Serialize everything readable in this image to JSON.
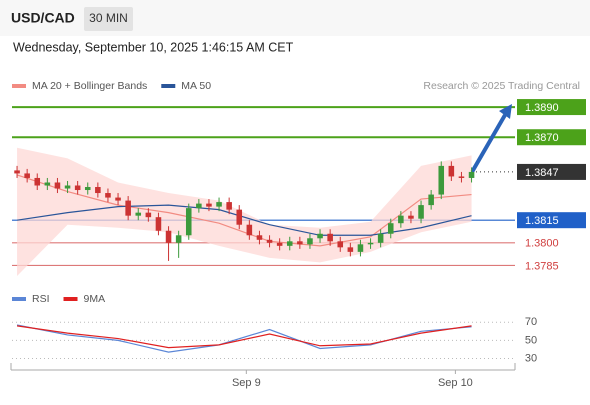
{
  "header": {
    "symbol": "USD/CAD",
    "timeframe": "30 MIN",
    "datetime": "Wednesday, September 10, 2025 1:46:15 AM CET"
  },
  "chart_data": [
    {
      "type": "candlestick",
      "source": "Research © 2025 Trading Central",
      "xlim": [
        0,
        50
      ],
      "ylim": [
        1.3778,
        1.3898
      ],
      "up_color": "#3c9a3c",
      "down_color": "#cc3333",
      "x": [
        0.5,
        1.5,
        2.5,
        3.5,
        4.5,
        5.5,
        6.5,
        7.5,
        8.5,
        9.5,
        10.5,
        11.5,
        12.5,
        13.5,
        14.5,
        15.5,
        16.5,
        17.5,
        18.5,
        19.5,
        20.5,
        21.5,
        22.5,
        23.5,
        24.5,
        25.5,
        26.5,
        27.5,
        28.5,
        29.5,
        30.5,
        31.5,
        32.5,
        33.5,
        34.5,
        35.5,
        36.5,
        37.5,
        38.5,
        39.5,
        40.5,
        41.5,
        42.5,
        43.5,
        44.5,
        45.5
      ],
      "open": [
        1.3848,
        1.3846,
        1.3843,
        1.3838,
        1.384,
        1.3836,
        1.3838,
        1.3835,
        1.3837,
        1.3833,
        1.383,
        1.3828,
        1.3818,
        1.382,
        1.3817,
        1.3808,
        1.38,
        1.3805,
        1.3823,
        1.3826,
        1.3824,
        1.3827,
        1.3822,
        1.3812,
        1.3805,
        1.3802,
        1.38,
        1.3798,
        1.3801,
        1.3799,
        1.3803,
        1.3806,
        1.3801,
        1.3797,
        1.3794,
        1.3799,
        1.38,
        1.3806,
        1.3813,
        1.3818,
        1.3816,
        1.3825,
        1.3832,
        1.3851,
        1.3844,
        1.3843
      ],
      "high": [
        1.3851,
        1.3849,
        1.3846,
        1.3843,
        1.3843,
        1.3841,
        1.3841,
        1.384,
        1.384,
        1.3836,
        1.3833,
        1.3831,
        1.3823,
        1.3823,
        1.382,
        1.3811,
        1.3808,
        1.3826,
        1.3829,
        1.3829,
        1.383,
        1.383,
        1.3825,
        1.3815,
        1.3808,
        1.3805,
        1.3803,
        1.3804,
        1.3804,
        1.3806,
        1.3809,
        1.3809,
        1.3804,
        1.38,
        1.3802,
        1.3803,
        1.3809,
        1.3816,
        1.3821,
        1.3821,
        1.3828,
        1.3835,
        1.3854,
        1.3854,
        1.3847,
        1.385
      ],
      "low": [
        1.3843,
        1.384,
        1.3835,
        1.3835,
        1.3833,
        1.3833,
        1.3832,
        1.3832,
        1.383,
        1.3827,
        1.3825,
        1.3815,
        1.3815,
        1.3814,
        1.3805,
        1.3788,
        1.379,
        1.3802,
        1.382,
        1.3821,
        1.3821,
        1.3819,
        1.3809,
        1.3802,
        1.3799,
        1.3797,
        1.3795,
        1.3795,
        1.3796,
        1.3796,
        1.38,
        1.3798,
        1.3794,
        1.3791,
        1.3791,
        1.3796,
        1.3797,
        1.3803,
        1.381,
        1.3813,
        1.3813,
        1.3822,
        1.3829,
        1.3841,
        1.384,
        1.384
      ],
      "close": [
        1.3846,
        1.3843,
        1.3838,
        1.384,
        1.3836,
        1.3838,
        1.3835,
        1.3837,
        1.3833,
        1.383,
        1.3828,
        1.3818,
        1.382,
        1.3817,
        1.3808,
        1.38,
        1.3805,
        1.3823,
        1.3826,
        1.3824,
        1.3827,
        1.3822,
        1.3812,
        1.3805,
        1.3802,
        1.38,
        1.3798,
        1.3801,
        1.3799,
        1.3803,
        1.3806,
        1.3801,
        1.3797,
        1.3794,
        1.3799,
        1.38,
        1.3806,
        1.3813,
        1.3818,
        1.3816,
        1.3825,
        1.3832,
        1.3851,
        1.3844,
        1.3843,
        1.3847
      ],
      "series": [
        {
          "name": "MA 20 + Bollinger Bands",
          "color": "#f28b82",
          "band_color": "#fdd8d6",
          "x": [
            0.5,
            5.5,
            10.5,
            15.5,
            20.5,
            25.5,
            30.5,
            35.5,
            40.5,
            45.5
          ],
          "values": [
            1.3845,
            1.3834,
            1.3825,
            1.382,
            1.3813,
            1.3801,
            1.3798,
            1.3804,
            1.3829,
            1.3832
          ],
          "upper": [
            1.3863,
            1.3856,
            1.384,
            1.3833,
            1.3828,
            1.3812,
            1.381,
            1.3814,
            1.3851,
            1.3858
          ],
          "lower": [
            1.3778,
            1.3812,
            1.381,
            1.3807,
            1.3798,
            1.379,
            1.3787,
            1.3794,
            1.3807,
            1.3814
          ]
        },
        {
          "name": "MA 50",
          "color": "#2a5599",
          "x": [
            0.5,
            5.5,
            10.5,
            15.5,
            20.5,
            25.5,
            30.5,
            35.5,
            40.5,
            45.5
          ],
          "values": [
            1.3815,
            1.382,
            1.3824,
            1.3825,
            1.3822,
            1.3812,
            1.3805,
            1.3805,
            1.381,
            1.3818
          ]
        }
      ],
      "levels": [
        {
          "value": 1.389,
          "label": "1.3890",
          "color": "#4ca21a",
          "style": "box",
          "line": "solid"
        },
        {
          "value": 1.387,
          "label": "1.3870",
          "color": "#4ca21a",
          "style": "box",
          "line": "solid"
        },
        {
          "value": 1.3847,
          "label": "1.3847",
          "color": "#333333",
          "style": "box",
          "line": "dotted"
        },
        {
          "value": 1.3815,
          "label": "1.3815",
          "color": "#2060c8",
          "style": "box",
          "line": "solid"
        },
        {
          "value": 1.38,
          "label": "1.3800",
          "color": "#d04040",
          "style": "text",
          "line": "solid"
        },
        {
          "value": 1.3785,
          "label": "1.3785",
          "color": "#d04040",
          "style": "text",
          "line": "solid"
        }
      ]
    },
    {
      "type": "line",
      "xlim": [
        0,
        50
      ],
      "ylim": [
        15,
        88
      ],
      "yticks": [
        70,
        50,
        30
      ],
      "xticks": [
        {
          "value": 23.2,
          "label": "Sep 9"
        },
        {
          "value": 43.9,
          "label": "Sep 10"
        }
      ],
      "series": [
        {
          "name": "RSI",
          "color": "#5b86d6",
          "x": [
            0.5,
            5.5,
            10.5,
            15.5,
            20.5,
            25.5,
            30.5,
            35.5,
            40.5,
            45.5
          ],
          "values": [
            67,
            56,
            50,
            37,
            45,
            62,
            41,
            45,
            60,
            65
          ]
        },
        {
          "name": "9MA",
          "color": "#e02020",
          "x": [
            0.5,
            5.5,
            10.5,
            15.5,
            20.5,
            25.5,
            30.5,
            35.5,
            40.5,
            45.5
          ],
          "values": [
            66,
            58,
            52,
            42,
            45,
            57,
            44,
            46,
            58,
            66
          ]
        }
      ]
    }
  ]
}
